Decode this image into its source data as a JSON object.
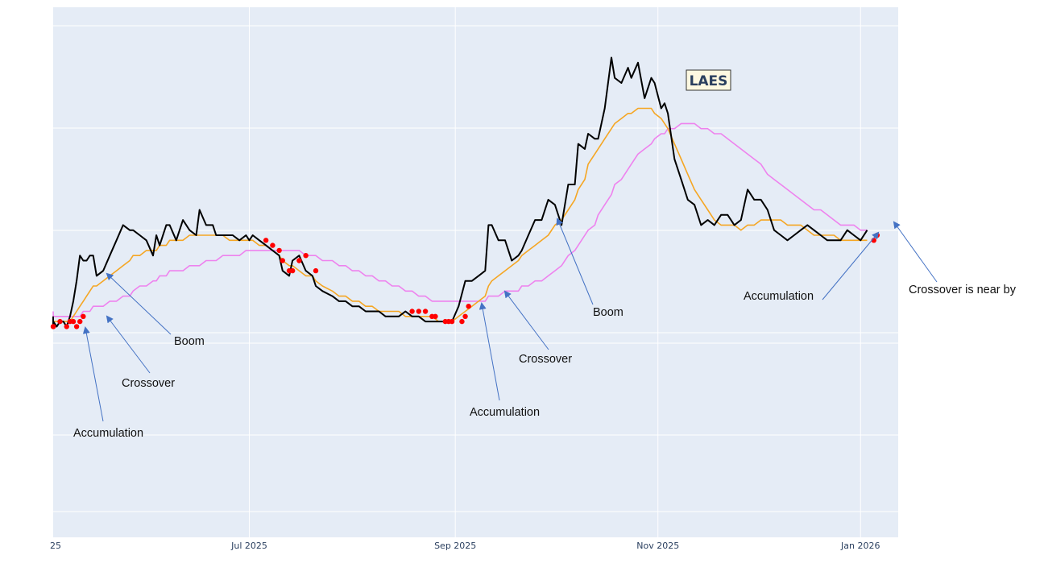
{
  "chart_data": {
    "type": "line",
    "title": "LAES",
    "x_tick_labels": [
      "25",
      "Jul 2025",
      "Sep 2025",
      "Nov 2025",
      "Jan 2026"
    ],
    "x_ticks": [
      "2025-05-01",
      "2025-07-01",
      "2025-09-01",
      "2025-11-01",
      "2026-01-01"
    ],
    "x_range": [
      "2025-05-01",
      "2026-01-07"
    ],
    "y_range": [
      0,
      1
    ],
    "y_tick_labels": [],
    "grid": true,
    "legend": "none",
    "colors": {
      "plot_bg": "#e5ecf6",
      "grid": "#ffffff",
      "price": "#000000",
      "fast_ma": "#f5a623",
      "slow_ma": "#ee82ee",
      "signal_dots": "#ff0000",
      "arrows": "#4472c4"
    },
    "x_dates": [
      "2025-05-01",
      "2025-05-02",
      "2025-05-03",
      "2025-05-04",
      "2025-05-05",
      "2025-05-06",
      "2025-05-07",
      "2025-05-08",
      "2025-05-09",
      "2025-05-10",
      "2025-05-11",
      "2025-05-12",
      "2025-05-13",
      "2025-05-14",
      "2025-05-15",
      "2025-05-16",
      "2025-05-18",
      "2025-05-20",
      "2025-05-22",
      "2025-05-24",
      "2025-05-26",
      "2025-05-27",
      "2025-05-29",
      "2025-05-31",
      "2025-06-02",
      "2025-06-03",
      "2025-06-04",
      "2025-06-06",
      "2025-06-07",
      "2025-06-09",
      "2025-06-11",
      "2025-06-13",
      "2025-06-15",
      "2025-06-16",
      "2025-06-18",
      "2025-06-20",
      "2025-06-21",
      "2025-06-23",
      "2025-06-25",
      "2025-06-26",
      "2025-06-28",
      "2025-06-30",
      "2025-07-01",
      "2025-07-02",
      "2025-07-04",
      "2025-07-06",
      "2025-07-08",
      "2025-07-10",
      "2025-07-11",
      "2025-07-13",
      "2025-07-14",
      "2025-07-16",
      "2025-07-18",
      "2025-07-20",
      "2025-07-21",
      "2025-07-23",
      "2025-07-26",
      "2025-07-28",
      "2025-07-30",
      "2025-08-01",
      "2025-08-03",
      "2025-08-05",
      "2025-08-07",
      "2025-08-09",
      "2025-08-11",
      "2025-08-13",
      "2025-08-15",
      "2025-08-17",
      "2025-08-19",
      "2025-08-21",
      "2025-08-23",
      "2025-08-25",
      "2025-08-27",
      "2025-08-29",
      "2025-08-31",
      "2025-09-02",
      "2025-09-04",
      "2025-09-06",
      "2025-09-08",
      "2025-09-10",
      "2025-09-11",
      "2025-09-12",
      "2025-09-14",
      "2025-09-16",
      "2025-09-18",
      "2025-09-20",
      "2025-09-21",
      "2025-09-23",
      "2025-09-25",
      "2025-09-27",
      "2025-09-29",
      "2025-10-01",
      "2025-10-03",
      "2025-10-05",
      "2025-10-07",
      "2025-10-08",
      "2025-10-10",
      "2025-10-11",
      "2025-10-13",
      "2025-10-14",
      "2025-10-16",
      "2025-10-18",
      "2025-10-19",
      "2025-10-21",
      "2025-10-23",
      "2025-10-24",
      "2025-10-26",
      "2025-10-28",
      "2025-10-30",
      "2025-10-31",
      "2025-11-02",
      "2025-11-03",
      "2025-11-04",
      "2025-11-06",
      "2025-11-08",
      "2025-11-10",
      "2025-11-12",
      "2025-11-14",
      "2025-11-16",
      "2025-11-18",
      "2025-11-20",
      "2025-11-22",
      "2025-11-24",
      "2025-11-26",
      "2025-11-28",
      "2025-11-30",
      "2025-12-02",
      "2025-12-04",
      "2025-12-06",
      "2025-12-08",
      "2025-12-10",
      "2025-12-12",
      "2025-12-14",
      "2025-12-16",
      "2025-12-18",
      "2025-12-20",
      "2025-12-22",
      "2025-12-24",
      "2025-12-26",
      "2025-12-28",
      "2025-12-30",
      "2026-01-01",
      "2026-01-03",
      "2026-01-05",
      "2026-01-07"
    ],
    "series": [
      {
        "key": "price",
        "values": [
          0.44,
          0.42,
          0.43,
          0.42,
          0.43,
          0.43,
          0.42,
          0.44,
          0.47,
          0.51,
          0.56,
          0.55,
          0.55,
          0.56,
          0.56,
          0.52,
          0.53,
          0.56,
          0.59,
          0.62,
          0.61,
          0.61,
          0.6,
          0.59,
          0.56,
          0.6,
          0.58,
          0.62,
          0.62,
          0.59,
          0.63,
          0.61,
          0.6,
          0.65,
          0.62,
          0.62,
          0.6,
          0.6,
          0.6,
          0.6,
          0.59,
          0.6,
          0.59,
          0.6,
          0.59,
          0.58,
          0.57,
          0.56,
          0.53,
          0.52,
          0.55,
          0.56,
          0.53,
          0.52,
          0.5,
          0.49,
          0.48,
          0.47,
          0.47,
          0.46,
          0.46,
          0.45,
          0.45,
          0.45,
          0.44,
          0.44,
          0.44,
          0.45,
          0.44,
          0.44,
          0.43,
          0.43,
          0.43,
          0.43,
          0.43,
          0.46,
          0.51,
          0.51,
          0.52,
          0.53,
          0.62,
          0.62,
          0.59,
          0.59,
          0.55,
          0.56,
          0.57,
          0.6,
          0.63,
          0.63,
          0.67,
          0.66,
          0.62,
          0.7,
          0.7,
          0.78,
          0.77,
          0.8,
          0.79,
          0.79,
          0.85,
          0.95,
          0.91,
          0.9,
          0.93,
          0.91,
          0.94,
          0.87,
          0.91,
          0.9,
          0.85,
          0.86,
          0.84,
          0.75,
          0.71,
          0.67,
          0.66,
          0.62,
          0.63,
          0.62,
          0.64,
          0.64,
          0.62,
          0.63,
          0.69,
          0.67,
          0.67,
          0.65,
          0.61,
          0.6,
          0.59,
          0.6,
          0.61,
          0.62,
          0.61,
          0.6,
          0.59,
          0.59,
          0.59,
          0.61,
          0.6,
          0.59,
          0.61
        ]
      },
      {
        "key": "fast_ma",
        "values": [
          0.43,
          0.43,
          0.43,
          0.43,
          0.43,
          0.43,
          0.43,
          0.43,
          0.44,
          0.45,
          0.46,
          0.47,
          0.48,
          0.49,
          0.5,
          0.5,
          0.51,
          0.52,
          0.53,
          0.54,
          0.55,
          0.56,
          0.56,
          0.57,
          0.57,
          0.57,
          0.58,
          0.58,
          0.59,
          0.59,
          0.59,
          0.6,
          0.6,
          0.6,
          0.6,
          0.6,
          0.6,
          0.6,
          0.59,
          0.59,
          0.59,
          0.59,
          0.59,
          0.59,
          0.58,
          0.58,
          0.57,
          0.56,
          0.55,
          0.54,
          0.54,
          0.53,
          0.52,
          0.52,
          0.51,
          0.5,
          0.49,
          0.48,
          0.48,
          0.47,
          0.47,
          0.46,
          0.46,
          0.45,
          0.45,
          0.45,
          0.45,
          0.44,
          0.44,
          0.44,
          0.44,
          0.44,
          0.43,
          0.43,
          0.43,
          0.44,
          0.45,
          0.46,
          0.47,
          0.48,
          0.5,
          0.51,
          0.52,
          0.53,
          0.54,
          0.55,
          0.56,
          0.57,
          0.58,
          0.59,
          0.6,
          0.62,
          0.63,
          0.65,
          0.67,
          0.69,
          0.71,
          0.74,
          0.76,
          0.77,
          0.79,
          0.81,
          0.82,
          0.83,
          0.84,
          0.84,
          0.85,
          0.85,
          0.85,
          0.84,
          0.83,
          0.82,
          0.81,
          0.78,
          0.75,
          0.72,
          0.69,
          0.67,
          0.65,
          0.63,
          0.62,
          0.62,
          0.62,
          0.61,
          0.62,
          0.62,
          0.63,
          0.63,
          0.63,
          0.63,
          0.62,
          0.62,
          0.62,
          0.61,
          0.6,
          0.6,
          0.6,
          0.6,
          0.59,
          0.59,
          0.59,
          0.59,
          0.59
        ]
      },
      {
        "key": "slow_ma",
        "values": [
          0.45,
          0.45,
          0.44,
          0.44,
          0.44,
          0.44,
          0.44,
          0.44,
          0.44,
          0.44,
          0.44,
          0.45,
          0.45,
          0.45,
          0.46,
          0.46,
          0.46,
          0.47,
          0.47,
          0.48,
          0.48,
          0.49,
          0.5,
          0.5,
          0.51,
          0.51,
          0.52,
          0.52,
          0.53,
          0.53,
          0.53,
          0.54,
          0.54,
          0.54,
          0.55,
          0.55,
          0.55,
          0.56,
          0.56,
          0.56,
          0.56,
          0.57,
          0.57,
          0.57,
          0.57,
          0.57,
          0.57,
          0.57,
          0.57,
          0.57,
          0.57,
          0.57,
          0.56,
          0.56,
          0.56,
          0.55,
          0.55,
          0.54,
          0.54,
          0.53,
          0.53,
          0.52,
          0.52,
          0.51,
          0.51,
          0.5,
          0.5,
          0.49,
          0.49,
          0.48,
          0.48,
          0.47,
          0.47,
          0.47,
          0.47,
          0.47,
          0.47,
          0.47,
          0.47,
          0.47,
          0.48,
          0.48,
          0.48,
          0.49,
          0.49,
          0.49,
          0.5,
          0.5,
          0.51,
          0.51,
          0.52,
          0.53,
          0.54,
          0.56,
          0.57,
          0.58,
          0.6,
          0.61,
          0.62,
          0.64,
          0.66,
          0.68,
          0.7,
          0.71,
          0.73,
          0.74,
          0.76,
          0.77,
          0.78,
          0.79,
          0.8,
          0.8,
          0.81,
          0.81,
          0.82,
          0.82,
          0.82,
          0.81,
          0.81,
          0.8,
          0.8,
          0.79,
          0.78,
          0.77,
          0.76,
          0.75,
          0.74,
          0.72,
          0.71,
          0.7,
          0.69,
          0.68,
          0.67,
          0.66,
          0.65,
          0.65,
          0.64,
          0.63,
          0.62,
          0.62,
          0.62,
          0.61,
          0.61
        ]
      }
    ],
    "signal_dots": [
      {
        "x": "2025-05-02",
        "y": 0.42
      },
      {
        "x": "2025-05-03",
        "y": 0.42
      },
      {
        "x": "2025-05-05",
        "y": 0.43
      },
      {
        "x": "2025-05-07",
        "y": 0.42
      },
      {
        "x": "2025-05-08",
        "y": 0.43
      },
      {
        "x": "2025-05-09",
        "y": 0.43
      },
      {
        "x": "2025-05-10",
        "y": 0.42
      },
      {
        "x": "2025-05-11",
        "y": 0.43
      },
      {
        "x": "2025-05-12",
        "y": 0.44
      },
      {
        "x": "2025-07-06",
        "y": 0.59
      },
      {
        "x": "2025-07-08",
        "y": 0.58
      },
      {
        "x": "2025-07-10",
        "y": 0.57
      },
      {
        "x": "2025-07-11",
        "y": 0.55
      },
      {
        "x": "2025-07-13",
        "y": 0.53
      },
      {
        "x": "2025-07-14",
        "y": 0.53
      },
      {
        "x": "2025-07-16",
        "y": 0.55
      },
      {
        "x": "2025-07-18",
        "y": 0.56
      },
      {
        "x": "2025-07-21",
        "y": 0.53
      },
      {
        "x": "2025-08-19",
        "y": 0.45
      },
      {
        "x": "2025-08-21",
        "y": 0.45
      },
      {
        "x": "2025-08-23",
        "y": 0.45
      },
      {
        "x": "2025-08-25",
        "y": 0.44
      },
      {
        "x": "2025-08-26",
        "y": 0.44
      },
      {
        "x": "2025-08-29",
        "y": 0.43
      },
      {
        "x": "2025-08-30",
        "y": 0.43
      },
      {
        "x": "2025-08-31",
        "y": 0.43
      },
      {
        "x": "2025-09-03",
        "y": 0.43
      },
      {
        "x": "2025-09-04",
        "y": 0.44
      },
      {
        "x": "2025-09-05",
        "y": 0.46
      },
      {
        "x": "2026-01-05",
        "y": 0.59
      },
      {
        "x": "2026-01-06",
        "y": 0.6
      }
    ],
    "annotations": [
      {
        "text": "Accumulation"
      },
      {
        "text": "Crossover"
      },
      {
        "text": "Boom"
      },
      {
        "text": "Accumulation"
      },
      {
        "text": "Crossover"
      },
      {
        "text": "Boom"
      },
      {
        "text": "Accumulation"
      },
      {
        "text": "Crossover is near by"
      }
    ]
  }
}
